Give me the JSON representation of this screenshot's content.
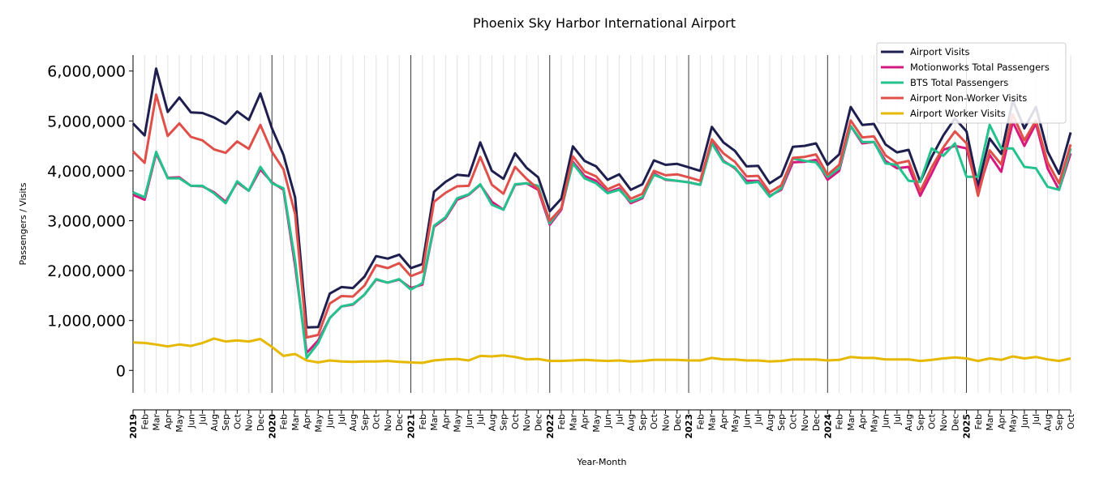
{
  "chart_data": {
    "type": "line",
    "title": "Phoenix Sky Harbor International Airport",
    "xlabel": "Year-Month",
    "ylabel": "Passengers / Visits",
    "ylim": [
      -450000,
      6320000
    ],
    "yticks": [
      0,
      1000000,
      2000000,
      3000000,
      4000000,
      5000000,
      6000000
    ],
    "ytick_labels": [
      "0",
      "1,000,000",
      "2,000,000",
      "3,000,000",
      "4,000,000",
      "5,000,000",
      "6,000,000"
    ],
    "start": {
      "year": 2019,
      "month": 1
    },
    "month_labels": [
      "Jan",
      "Feb",
      "Mar",
      "Apr",
      "May",
      "Jun",
      "Jul",
      "Aug",
      "Sep",
      "Oct",
      "Nov",
      "Dec"
    ],
    "legend_position": "top-right",
    "grid": "vertical monthly lines, bold yearly lines",
    "series": [
      {
        "name": "Airport Visits",
        "color": "#1f1f4f",
        "values": [
          4.95,
          4.71,
          6.05,
          5.18,
          5.47,
          5.17,
          5.16,
          5.07,
          4.94,
          5.19,
          5.02,
          5.55,
          4.85,
          4.32,
          3.47,
          0.86,
          0.87,
          1.54,
          1.67,
          1.65,
          1.88,
          2.29,
          2.24,
          2.32,
          2.05,
          2.13,
          3.58,
          3.78,
          3.92,
          3.9,
          4.57,
          4.0,
          3.84,
          4.35,
          4.06,
          3.87,
          3.19,
          3.44,
          4.49,
          4.2,
          4.09,
          3.82,
          3.93,
          3.62,
          3.73,
          4.21,
          4.12,
          4.14,
          4.07,
          4.0,
          4.88,
          4.57,
          4.4,
          4.09,
          4.1,
          3.75,
          3.9,
          4.48,
          4.5,
          4.55,
          4.12,
          4.33,
          5.28,
          4.92,
          4.94,
          4.53,
          4.37,
          4.42,
          3.78,
          4.28,
          4.71,
          5.05,
          4.79,
          3.69,
          4.65,
          4.34,
          5.41,
          4.85,
          5.28,
          4.39,
          3.94,
          4.77
        ]
      },
      {
        "name": "Motionworks Total Passengers",
        "color": "#d6197f",
        "values": [
          3.52,
          3.42,
          4.35,
          3.86,
          3.87,
          3.7,
          3.69,
          3.57,
          3.38,
          3.77,
          3.6,
          4.03,
          3.77,
          3.62,
          2.1,
          0.35,
          0.6,
          1.05,
          1.28,
          1.32,
          1.52,
          1.82,
          1.76,
          1.82,
          1.65,
          1.72,
          2.88,
          3.05,
          3.42,
          3.52,
          3.72,
          3.38,
          3.22,
          3.72,
          3.75,
          3.62,
          2.92,
          3.22,
          4.18,
          3.9,
          3.8,
          3.57,
          3.65,
          3.35,
          3.45,
          3.95,
          3.82,
          3.8,
          3.77,
          3.72,
          4.6,
          4.2,
          4.05,
          3.8,
          3.8,
          3.5,
          3.62,
          4.17,
          4.18,
          4.22,
          3.82,
          4.0,
          4.9,
          4.55,
          4.58,
          4.2,
          4.05,
          4.08,
          3.5,
          3.95,
          4.42,
          4.5,
          4.45,
          3.58,
          4.32,
          3.98,
          4.98,
          4.5,
          4.95,
          4.05,
          3.62,
          4.35
        ]
      },
      {
        "name": "BTS Total Passengers",
        "color": "#25c28e",
        "values": [
          3.57,
          3.47,
          4.38,
          3.85,
          3.85,
          3.7,
          3.7,
          3.55,
          3.35,
          3.79,
          3.6,
          4.08,
          3.75,
          3.65,
          2.2,
          0.25,
          0.55,
          1.05,
          1.28,
          1.33,
          1.52,
          1.83,
          1.76,
          1.83,
          1.62,
          1.75,
          2.9,
          3.07,
          3.45,
          3.53,
          3.73,
          3.32,
          3.22,
          3.73,
          3.75,
          3.7,
          2.95,
          3.25,
          4.15,
          3.85,
          3.75,
          3.55,
          3.62,
          3.38,
          3.47,
          3.92,
          3.83,
          3.8,
          3.77,
          3.72,
          4.55,
          4.18,
          4.07,
          3.75,
          3.78,
          3.48,
          3.65,
          4.25,
          4.2,
          4.17,
          3.88,
          4.05,
          4.9,
          4.58,
          4.58,
          4.15,
          4.12,
          3.8,
          3.78,
          4.45,
          4.3,
          4.55,
          3.88,
          3.88,
          4.92,
          4.45,
          4.45,
          4.08,
          4.05,
          3.68,
          3.62,
          4.45
        ]
      },
      {
        "name": "Airport Non-Worker Visits",
        "color": "#e0504a",
        "values": [
          4.39,
          4.16,
          5.53,
          4.7,
          4.95,
          4.68,
          4.61,
          4.43,
          4.36,
          4.59,
          4.44,
          4.92,
          4.38,
          4.03,
          3.14,
          0.66,
          0.71,
          1.34,
          1.49,
          1.48,
          1.7,
          2.11,
          2.05,
          2.15,
          1.89,
          1.98,
          3.38,
          3.56,
          3.69,
          3.7,
          4.28,
          3.72,
          3.54,
          4.08,
          3.84,
          3.64,
          3.0,
          3.25,
          4.29,
          3.99,
          3.89,
          3.63,
          3.73,
          3.44,
          3.54,
          4.0,
          3.91,
          3.93,
          3.87,
          3.8,
          4.63,
          4.35,
          4.18,
          3.89,
          3.9,
          3.57,
          3.71,
          4.26,
          4.28,
          4.33,
          3.92,
          4.12,
          5.01,
          4.67,
          4.69,
          4.31,
          4.15,
          4.2,
          3.59,
          4.07,
          4.47,
          4.79,
          4.55,
          3.5,
          4.41,
          4.13,
          5.13,
          4.61,
          5.01,
          4.17,
          3.75,
          4.53
        ]
      },
      {
        "name": "Airport Worker Visits",
        "color": "#e6b800",
        "values": [
          0.56,
          0.55,
          0.52,
          0.48,
          0.52,
          0.49,
          0.55,
          0.64,
          0.58,
          0.6,
          0.58,
          0.63,
          0.47,
          0.29,
          0.33,
          0.2,
          0.16,
          0.2,
          0.18,
          0.17,
          0.18,
          0.18,
          0.19,
          0.17,
          0.16,
          0.15,
          0.2,
          0.22,
          0.23,
          0.2,
          0.29,
          0.28,
          0.3,
          0.27,
          0.22,
          0.23,
          0.19,
          0.19,
          0.2,
          0.21,
          0.2,
          0.19,
          0.2,
          0.18,
          0.19,
          0.21,
          0.21,
          0.21,
          0.2,
          0.2,
          0.25,
          0.22,
          0.22,
          0.2,
          0.2,
          0.18,
          0.19,
          0.22,
          0.22,
          0.22,
          0.2,
          0.21,
          0.27,
          0.25,
          0.25,
          0.22,
          0.22,
          0.22,
          0.19,
          0.21,
          0.24,
          0.26,
          0.24,
          0.19,
          0.24,
          0.21,
          0.28,
          0.24,
          0.27,
          0.22,
          0.19,
          0.24
        ]
      }
    ],
    "value_unit_multiplier": 1000000
  }
}
